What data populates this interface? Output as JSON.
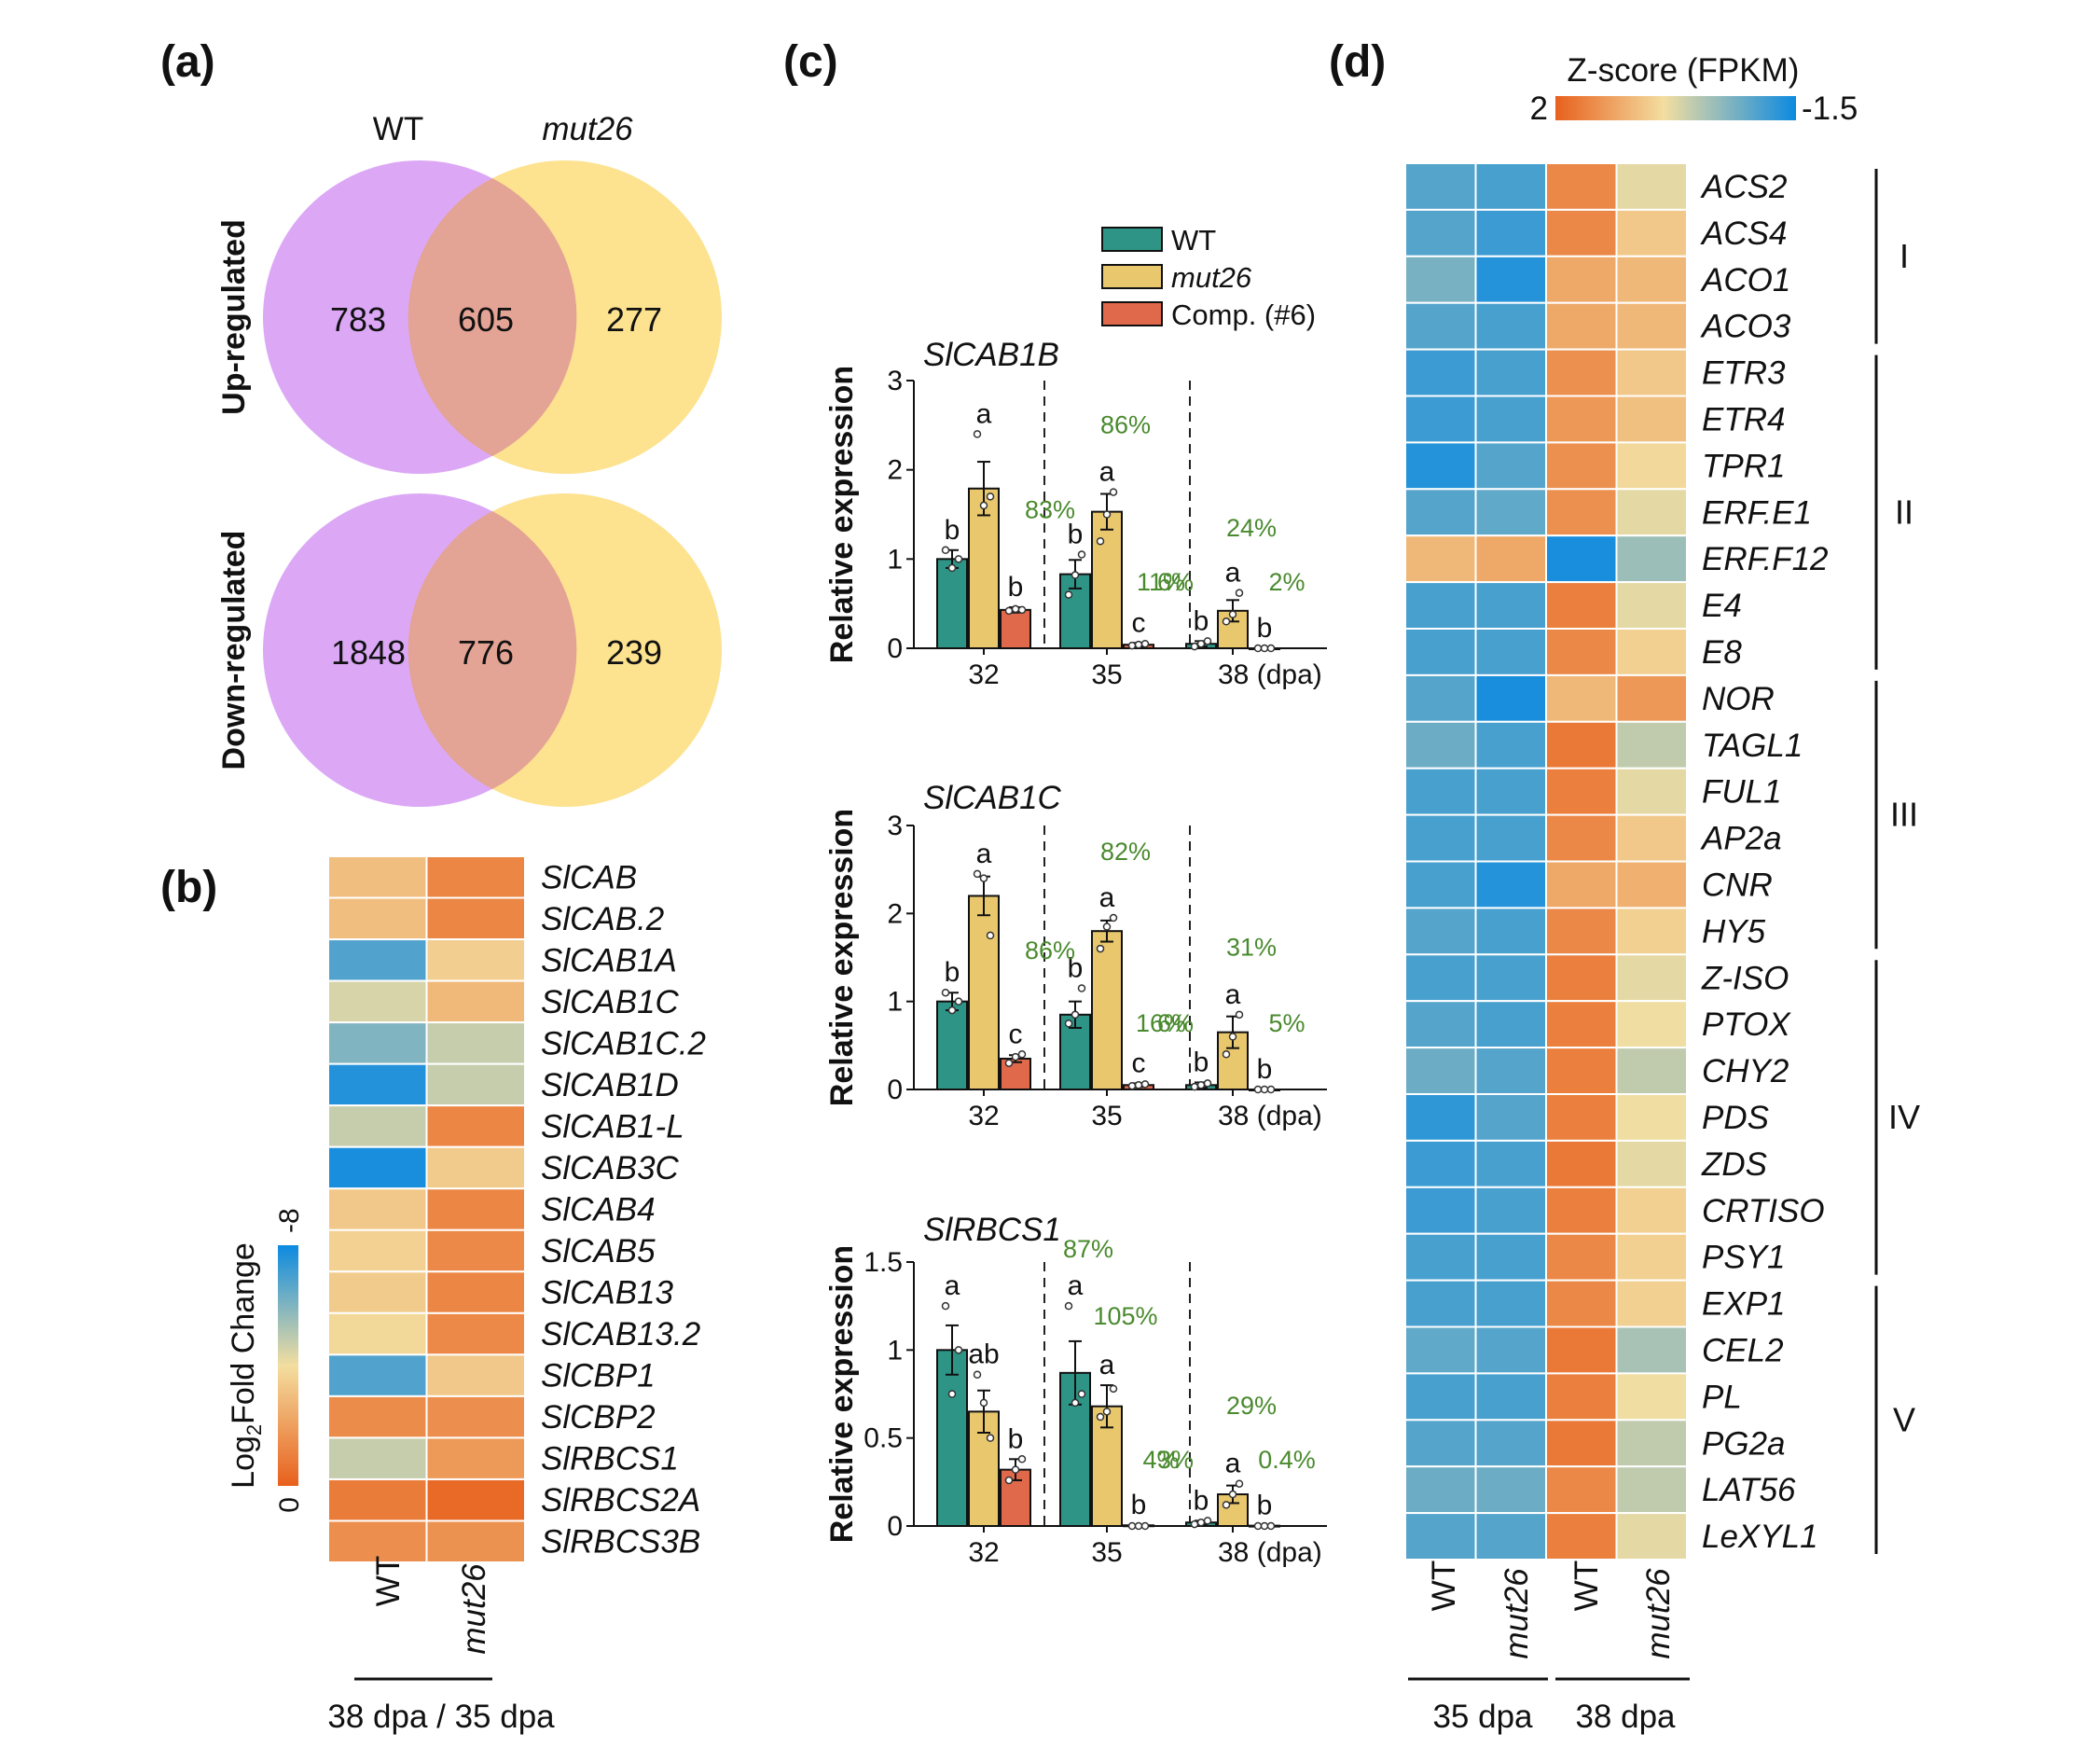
{
  "panel_labels": {
    "a": "(a)",
    "b": "(b)",
    "c": "(c)",
    "d": "(d)"
  },
  "colors": {
    "wt_circle": "#dca8f6",
    "mut_circle": "#fde28f",
    "overlap": "#e3a395",
    "bar_wt": "#2e9485",
    "bar_mut": "#e9c76c",
    "bar_comp": "#e0684b",
    "percent_text": "#4a8a2e",
    "heat_high": "#e8601d",
    "heat_mid": "#f3dea0",
    "heat_low": "#0c8ae0"
  },
  "panel_a": {
    "wt_label": "WT",
    "mut_label": "mut26",
    "up": {
      "title": "Up-regulated",
      "wt_only": "783",
      "both": "605",
      "mut_only": "277"
    },
    "down": {
      "title": "Down-regulated",
      "wt_only": "1848",
      "both": "776",
      "mut_only": "239"
    }
  },
  "panel_b": {
    "colorbar_title": "Log",
    "colorbar_sub": "2",
    "colorbar_title_rest": "Fold Change",
    "colorbar_min": "0",
    "colorbar_max": "-8",
    "columns": [
      "WT",
      "mut26"
    ],
    "footer": "38 dpa / 35 dpa"
  },
  "panel_c": {
    "legend": [
      "WT",
      "mut26",
      "Comp. (#6)"
    ],
    "ylabel": "Relative expression",
    "x_labels": [
      "32",
      "35",
      "38 (dpa)"
    ]
  },
  "panel_d": {
    "colorbar_title": "Z-score (FPKM)",
    "colorbar_min": "2",
    "colorbar_max": "-1.5",
    "columns": [
      "WT",
      "mut26",
      "WT",
      "mut26"
    ],
    "footers": [
      "35 dpa",
      "38 dpa"
    ],
    "clusters": [
      {
        "label": "I",
        "start": 0,
        "end": 3
      },
      {
        "label": "II",
        "start": 4,
        "end": 10
      },
      {
        "label": "III",
        "start": 11,
        "end": 16
      },
      {
        "label": "IV",
        "start": 17,
        "end": 23
      },
      {
        "label": "V",
        "start": 24,
        "end": 29
      }
    ]
  },
  "chart_data": [
    {
      "type": "heatmap",
      "panel": "b",
      "title": "",
      "columns": [
        "WT",
        "mut26"
      ],
      "colorbar_label": "Log2Fold Change",
      "range": [
        0,
        -8
      ],
      "rows": [
        {
          "gene": "SlCAB",
          "values": [
            -3.0,
            -1.2
          ]
        },
        {
          "gene": "SlCAB.2",
          "values": [
            -3.0,
            -1.2
          ]
        },
        {
          "gene": "SlCAB1A",
          "values": [
            -6.8,
            -3.5
          ]
        },
        {
          "gene": "SlCAB1C",
          "values": [
            -4.5,
            -2.8
          ]
        },
        {
          "gene": "SlCAB1C.2",
          "values": [
            -6.0,
            -4.8
          ]
        },
        {
          "gene": "SlCAB1D",
          "values": [
            -7.6,
            -4.8
          ]
        },
        {
          "gene": "SlCAB1-L",
          "values": [
            -4.8,
            -1.2
          ]
        },
        {
          "gene": "SlCAB3C",
          "values": [
            -7.8,
            -3.4
          ]
        },
        {
          "gene": "SlCAB4",
          "values": [
            -3.3,
            -1.2
          ]
        },
        {
          "gene": "SlCAB5",
          "values": [
            -3.6,
            -1.3
          ]
        },
        {
          "gene": "SlCAB13",
          "values": [
            -3.4,
            -1.2
          ]
        },
        {
          "gene": "SlCAB13.2",
          "values": [
            -3.8,
            -1.3
          ]
        },
        {
          "gene": "SlCBP1",
          "values": [
            -6.8,
            -3.3
          ]
        },
        {
          "gene": "SlCBP2",
          "values": [
            -1.4,
            -1.5
          ]
        },
        {
          "gene": "SlRBCS1",
          "values": [
            -4.8,
            -1.8
          ]
        },
        {
          "gene": "SlRBCS2A",
          "values": [
            -0.9,
            -0.3
          ]
        },
        {
          "gene": "SlRBCS3B",
          "values": [
            -1.5,
            -1.6
          ]
        }
      ]
    },
    {
      "type": "bar",
      "panel": "c",
      "title": "SlCAB1B",
      "ylabel": "Relative expression",
      "ylim": [
        0,
        3
      ],
      "yticks": [
        0,
        1,
        2,
        3
      ],
      "categories": [
        "32",
        "35",
        "38 (dpa)"
      ],
      "series": [
        {
          "name": "WT",
          "values": [
            1.0,
            0.83,
            0.05
          ],
          "err": [
            0.1,
            0.16,
            0.03
          ],
          "points": [
            [
              1.1,
              0.9,
              1.0
            ],
            [
              0.6,
              0.82,
              1.05
            ],
            [
              0.02,
              0.05,
              0.08
            ]
          ],
          "letters": [
            "b",
            "b",
            "b"
          ]
        },
        {
          "name": "mut26",
          "values": [
            1.79,
            1.53,
            0.42
          ],
          "err": [
            0.3,
            0.2,
            0.12
          ],
          "points": [
            [
              2.4,
              1.6,
              1.7
            ],
            [
              1.2,
              1.5,
              1.75
            ],
            [
              0.3,
              0.38,
              0.62
            ]
          ],
          "letters": [
            "a",
            "a",
            "a"
          ]
        },
        {
          "name": "Comp. (#6)",
          "values": [
            0.43,
            0.04,
            0.0
          ],
          "err": [
            0.03,
            0.02,
            0.0
          ],
          "points": [
            [
              0.42,
              0.44,
              0.43
            ],
            [
              0.03,
              0.04,
              0.05
            ],
            [
              0.0,
              0.0,
              0.0
            ]
          ],
          "letters": [
            "b",
            "c",
            "b"
          ]
        }
      ],
      "percent_labels": [
        {
          "text": "83%",
          "group": 1,
          "pos": "left"
        },
        {
          "text": "86%",
          "group": 1,
          "pos": "top"
        },
        {
          "text": "11%",
          "group": 1,
          "pos": "right"
        },
        {
          "text": "6%",
          "group": 2,
          "pos": "left"
        },
        {
          "text": "24%",
          "group": 2,
          "pos": "top"
        },
        {
          "text": "2%",
          "group": 2,
          "pos": "right"
        }
      ]
    },
    {
      "type": "bar",
      "panel": "c",
      "title": "SlCAB1C",
      "ylabel": "Relative expression",
      "ylim": [
        0,
        3
      ],
      "yticks": [
        0,
        1,
        2,
        3
      ],
      "categories": [
        "32",
        "35",
        "38 (dpa)"
      ],
      "series": [
        {
          "name": "WT",
          "values": [
            1.0,
            0.85,
            0.05
          ],
          "err": [
            0.1,
            0.15,
            0.03
          ],
          "points": [
            [
              1.1,
              0.9,
              1.0
            ],
            [
              0.75,
              0.85,
              1.15
            ],
            [
              0.03,
              0.05,
              0.07
            ]
          ],
          "letters": [
            "b",
            "b",
            "b"
          ]
        },
        {
          "name": "mut26",
          "values": [
            2.2,
            1.8,
            0.65
          ],
          "err": [
            0.22,
            0.12,
            0.18
          ],
          "points": [
            [
              2.45,
              2.4,
              1.75
            ],
            [
              1.6,
              1.85,
              1.95
            ],
            [
              0.4,
              0.6,
              0.85
            ]
          ],
          "letters": [
            "a",
            "a",
            "a"
          ]
        },
        {
          "name": "Comp. (#6)",
          "values": [
            0.35,
            0.05,
            0.0
          ],
          "err": [
            0.04,
            0.02,
            0.0
          ],
          "points": [
            [
              0.3,
              0.37,
              0.4
            ],
            [
              0.04,
              0.05,
              0.06
            ],
            [
              0.0,
              0.0,
              0.0
            ]
          ],
          "letters": [
            "c",
            "c",
            "b"
          ]
        }
      ],
      "percent_labels": [
        {
          "text": "86%",
          "group": 1,
          "pos": "left"
        },
        {
          "text": "82%",
          "group": 1,
          "pos": "top"
        },
        {
          "text": "16%",
          "group": 1,
          "pos": "right"
        },
        {
          "text": "6%",
          "group": 2,
          "pos": "left"
        },
        {
          "text": "31%",
          "group": 2,
          "pos": "top"
        },
        {
          "text": "5%",
          "group": 2,
          "pos": "right"
        }
      ]
    },
    {
      "type": "bar",
      "panel": "c",
      "title": "SlRBCS1",
      "ylabel": "Relative expression",
      "ylim": [
        0,
        1.5
      ],
      "yticks": [
        0,
        0.5,
        1,
        1.5
      ],
      "categories": [
        "32",
        "35",
        "38 (dpa)"
      ],
      "series": [
        {
          "name": "WT",
          "values": [
            1.0,
            0.87,
            0.02
          ],
          "err": [
            0.14,
            0.18,
            0.01
          ],
          "points": [
            [
              1.25,
              0.75,
              1.0
            ],
            [
              1.25,
              0.7,
              0.75
            ],
            [
              0.01,
              0.02,
              0.03
            ]
          ],
          "letters": [
            "a",
            "a",
            "b"
          ]
        },
        {
          "name": "mut26",
          "values": [
            0.65,
            0.68,
            0.18
          ],
          "err": [
            0.12,
            0.12,
            0.05
          ],
          "points": [
            [
              0.86,
              0.7,
              0.5
            ],
            [
              0.62,
              0.65,
              0.78
            ],
            [
              0.12,
              0.18,
              0.24
            ]
          ],
          "letters": [
            "ab",
            "a",
            "a"
          ]
        },
        {
          "name": "Comp. (#6)",
          "values": [
            0.32,
            0.004,
            0.002
          ],
          "err": [
            0.06,
            0.0,
            0.0
          ],
          "points": [
            [
              0.26,
              0.32,
              0.38
            ],
            [
              0.0,
              0.0,
              0.0
            ],
            [
              0.0,
              0.0,
              0.0
            ]
          ],
          "letters": [
            "b",
            "b",
            "b"
          ]
        }
      ],
      "percent_labels": [
        {
          "text": "87%",
          "group": 1,
          "pos": "topleft"
        },
        {
          "text": "105%",
          "group": 1,
          "pos": "top"
        },
        {
          "text": "4%",
          "group": 1,
          "pos": "right"
        },
        {
          "text": "3%",
          "group": 2,
          "pos": "left"
        },
        {
          "text": "29%",
          "group": 2,
          "pos": "top"
        },
        {
          "text": "0.4%",
          "group": 2,
          "pos": "right"
        }
      ]
    },
    {
      "type": "heatmap",
      "panel": "d",
      "title": "",
      "colorbar_label": "Z-score (FPKM)",
      "range": [
        2,
        -1.5
      ],
      "columns": [
        "WT 35 dpa",
        "mut26 35 dpa",
        "WT 38 dpa",
        "mut26 38 dpa"
      ],
      "rows": [
        {
          "gene": "ACS2",
          "values": [
            -0.9,
            -1.0,
            1.5,
            0.3
          ]
        },
        {
          "gene": "ACS4",
          "values": [
            -0.9,
            -1.1,
            1.5,
            0.7
          ]
        },
        {
          "gene": "ACO1",
          "values": [
            -0.6,
            -1.3,
            1.1,
            0.9
          ]
        },
        {
          "gene": "ACO3",
          "values": [
            -0.9,
            -1.0,
            1.1,
            0.9
          ]
        },
        {
          "gene": "ETR3",
          "values": [
            -1.1,
            -1.0,
            1.4,
            0.7
          ]
        },
        {
          "gene": "ETR4",
          "values": [
            -1.1,
            -1.0,
            1.3,
            0.8
          ]
        },
        {
          "gene": "TPR1",
          "values": [
            -1.3,
            -0.9,
            1.4,
            0.5
          ]
        },
        {
          "gene": "ERF.E1",
          "values": [
            -0.9,
            -0.8,
            1.4,
            0.3
          ]
        },
        {
          "gene": "ERF.F12",
          "values": [
            0.9,
            1.1,
            -1.4,
            -0.3
          ]
        },
        {
          "gene": "E4",
          "values": [
            -1.0,
            -1.0,
            1.6,
            0.3
          ]
        },
        {
          "gene": "E8",
          "values": [
            -1.0,
            -1.0,
            1.5,
            0.6
          ]
        },
        {
          "gene": "NOR",
          "values": [
            -0.9,
            -1.4,
            0.9,
            1.3
          ]
        },
        {
          "gene": "TAGL1",
          "values": [
            -0.7,
            -1.0,
            1.7,
            0.0
          ]
        },
        {
          "gene": "FUL1",
          "values": [
            -1.0,
            -1.0,
            1.6,
            0.3
          ]
        },
        {
          "gene": "AP2a",
          "values": [
            -1.0,
            -1.0,
            1.5,
            0.7
          ]
        },
        {
          "gene": "CNR",
          "values": [
            -1.0,
            -1.3,
            1.1,
            1.0
          ]
        },
        {
          "gene": "HY5",
          "values": [
            -0.9,
            -1.0,
            1.5,
            0.6
          ]
        },
        {
          "gene": "Z-ISO",
          "values": [
            -1.0,
            -1.0,
            1.6,
            0.3
          ]
        },
        {
          "gene": "PTOX",
          "values": [
            -0.9,
            -1.0,
            1.6,
            0.4
          ]
        },
        {
          "gene": "CHY2",
          "values": [
            -0.7,
            -0.9,
            1.6,
            0.0
          ]
        },
        {
          "gene": "PDS",
          "values": [
            -1.2,
            -0.9,
            1.6,
            0.4
          ]
        },
        {
          "gene": "ZDS",
          "values": [
            -1.1,
            -1.0,
            1.7,
            0.3
          ]
        },
        {
          "gene": "CRTISO",
          "values": [
            -1.1,
            -1.0,
            1.6,
            0.6
          ]
        },
        {
          "gene": "PSY1",
          "values": [
            -1.0,
            -1.0,
            1.5,
            0.6
          ]
        },
        {
          "gene": "EXP1",
          "values": [
            -1.0,
            -1.0,
            1.5,
            0.6
          ]
        },
        {
          "gene": "CEL2",
          "values": [
            -0.8,
            -0.9,
            1.7,
            -0.2
          ]
        },
        {
          "gene": "PL",
          "values": [
            -1.0,
            -1.0,
            1.6,
            0.4
          ]
        },
        {
          "gene": "PG2a",
          "values": [
            -0.9,
            -0.9,
            1.7,
            0.0
          ]
        },
        {
          "gene": "LAT56",
          "values": [
            -0.7,
            -0.7,
            1.5,
            0.0
          ]
        },
        {
          "gene": "LeXYL1",
          "values": [
            -0.9,
            -0.9,
            1.6,
            0.3
          ]
        }
      ]
    }
  ]
}
